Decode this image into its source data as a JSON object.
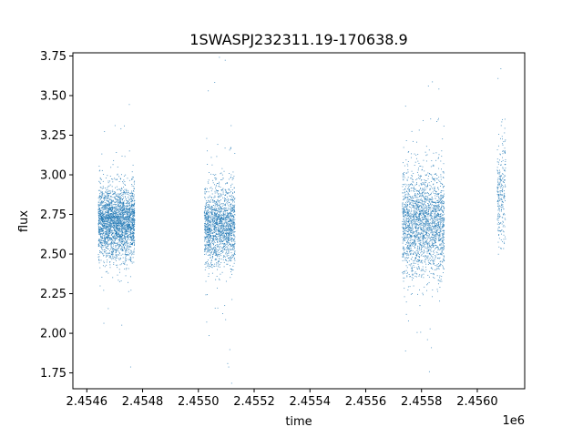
{
  "chart_data": {
    "type": "scatter",
    "title": "1SWASPJ232311.19-170638.9",
    "xlabel": "time",
    "ylabel": "flux",
    "x_offset_label": "1e6",
    "xlim": [
      2.45455,
      2.45617
    ],
    "ylim": [
      1.65,
      3.77
    ],
    "xticks": [
      2.4546,
      2.4548,
      2.455,
      2.4552,
      2.4554,
      2.4556,
      2.4558,
      2.456
    ],
    "xtick_labels": [
      "2.4546",
      "2.4548",
      "2.4550",
      "2.4552",
      "2.4554",
      "2.4556",
      "2.4558",
      "2.4560"
    ],
    "yticks": [
      1.75,
      2.0,
      2.25,
      2.5,
      2.75,
      3.0,
      3.25,
      3.5,
      3.75
    ],
    "ytick_labels": [
      "1.75",
      "2.00",
      "2.25",
      "2.50",
      "2.75",
      "3.00",
      "3.25",
      "3.50",
      "3.75"
    ],
    "grid": false,
    "marker_color": "#1f77b4",
    "series": [
      {
        "clusters": [
          {
            "x_range": [
              2.45464,
              2.45477
            ],
            "center": 2.7,
            "spread": 0.11,
            "count": 2600
          },
          {
            "x_range": [
              2.45502,
              2.45513
            ],
            "center": 2.68,
            "spread": 0.12,
            "count": 1700
          },
          {
            "x_range": [
              2.45573,
              2.45588
            ],
            "center": 2.7,
            "spread": 0.16,
            "count": 2200
          },
          {
            "x_range": [
              2.45607,
              2.4561
            ],
            "center": 2.9,
            "spread": 0.18,
            "count": 260
          }
        ]
      }
    ]
  }
}
